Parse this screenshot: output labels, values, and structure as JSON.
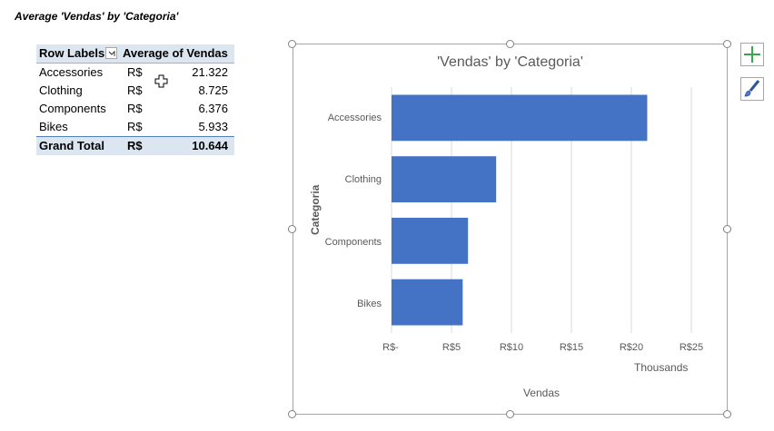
{
  "heading": "Average 'Vendas' by 'Categoria'",
  "pivot": {
    "header": {
      "row_labels": "Row Labels",
      "value_header": "Average of Vendas"
    },
    "rows": [
      {
        "label": "Accessories",
        "currency": "R$",
        "value": "21.322"
      },
      {
        "label": "Clothing",
        "currency": "R$",
        "value": "8.725"
      },
      {
        "label": "Components",
        "currency": "R$",
        "value": "6.376"
      },
      {
        "label": "Bikes",
        "currency": "R$",
        "value": "5.933"
      }
    ],
    "total": {
      "label": "Grand Total",
      "currency": "R$",
      "value": "10.644"
    }
  },
  "chart": {
    "units_label": "Thousands",
    "side_buttons": [
      "chart-elements-icon",
      "chart-styles-icon"
    ]
  },
  "chart_data": {
    "type": "bar",
    "orientation": "horizontal",
    "title": "'Vendas' by 'Categoria'",
    "xlabel": "Vendas",
    "ylabel": "Categoria",
    "categories": [
      "Accessories",
      "Clothing",
      "Components",
      "Bikes"
    ],
    "values": [
      21.322,
      8.725,
      6.376,
      5.933
    ],
    "x_ticks": [
      "R$-",
      "R$5",
      "R$10",
      "R$15",
      "R$20",
      "R$25"
    ],
    "xlim": [
      0,
      25
    ],
    "grid": true,
    "legend": "none",
    "bar_color": "#4472c4"
  }
}
